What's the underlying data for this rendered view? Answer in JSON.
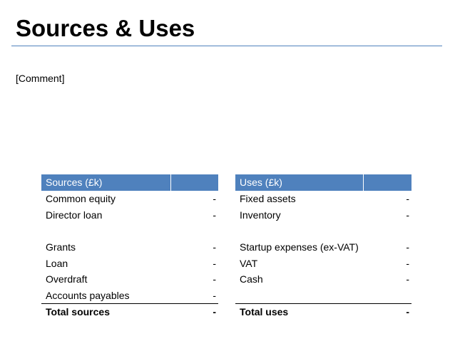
{
  "title": "Sources & Uses",
  "comment": "[Comment]",
  "sources": {
    "header": "Sources (£k)",
    "rows": [
      {
        "label": "Common equity",
        "value": "-"
      },
      {
        "label": "Director loan",
        "value": "-"
      },
      {
        "label": "Grants",
        "value": "-"
      },
      {
        "label": "Loan",
        "value": "-"
      },
      {
        "label": "Overdraft",
        "value": "-"
      },
      {
        "label": "Accounts payables",
        "value": "-"
      }
    ],
    "total": {
      "label": "Total sources",
      "value": "-"
    }
  },
  "uses": {
    "header": "Uses (£k)",
    "rows": [
      {
        "label": "Fixed assets",
        "value": "-"
      },
      {
        "label": "Inventory",
        "value": "-"
      },
      {
        "label": "Startup expenses (ex-VAT)",
        "value": "-"
      },
      {
        "label": "VAT",
        "value": "-"
      },
      {
        "label": "Cash",
        "value": "-"
      },
      {
        "label": "",
        "value": ""
      }
    ],
    "total": {
      "label": "Total uses",
      "value": "-"
    }
  },
  "colors": {
    "accent": "#4f81bd",
    "header_text": "#ffffff"
  }
}
